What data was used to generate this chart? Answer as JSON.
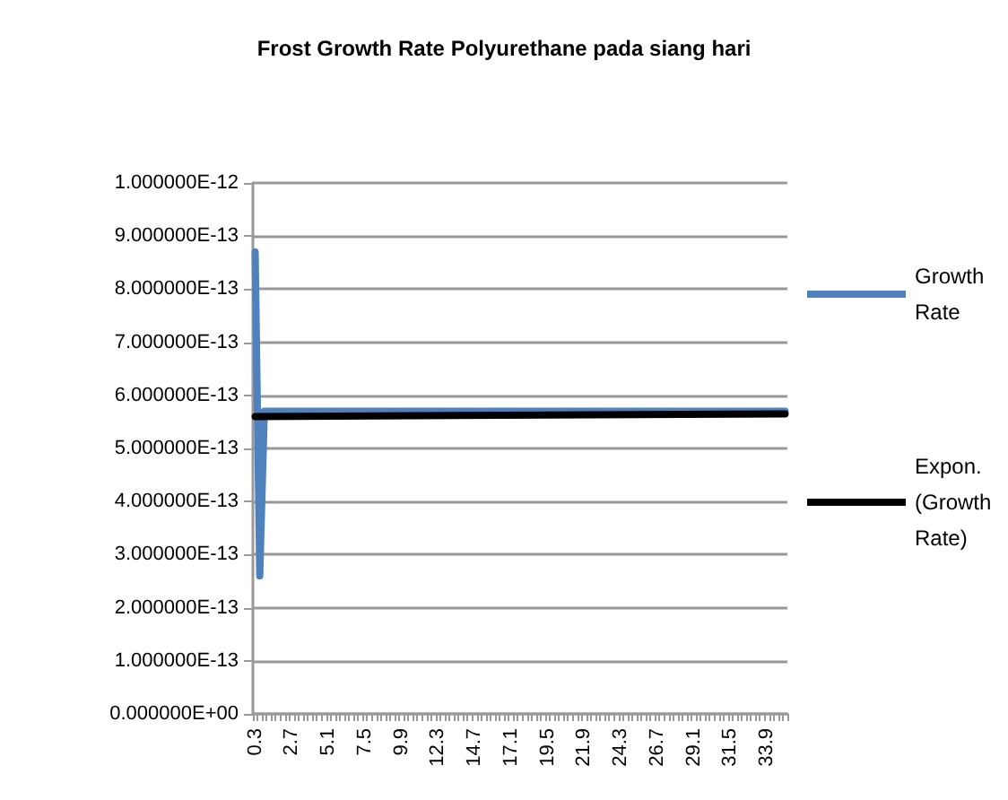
{
  "chart_data": {
    "type": "line",
    "title": "Frost Growth Rate Polyurethane pada siang hari",
    "categories": [
      "0.3",
      null,
      null,
      null,
      null,
      null,
      null,
      null,
      "2.7",
      null,
      null,
      null,
      null,
      null,
      null,
      null,
      "5.1",
      null,
      null,
      null,
      null,
      null,
      null,
      null,
      "7.5",
      null,
      null,
      null,
      null,
      null,
      null,
      null,
      "9.9",
      null,
      null,
      null,
      null,
      null,
      null,
      null,
      "12.3",
      null,
      null,
      null,
      null,
      null,
      null,
      null,
      "14.7",
      null,
      null,
      null,
      null,
      null,
      null,
      null,
      "17.1",
      null,
      null,
      null,
      null,
      null,
      null,
      null,
      "19.5",
      null,
      null,
      null,
      null,
      null,
      null,
      null,
      "21.9",
      null,
      null,
      null,
      null,
      null,
      null,
      null,
      "24.3",
      null,
      null,
      null,
      null,
      null,
      null,
      null,
      "26.7",
      null,
      null,
      null,
      null,
      null,
      null,
      null,
      "29.1",
      null,
      null,
      null,
      null,
      null,
      null,
      null,
      "31.5",
      null,
      null,
      null,
      null,
      null,
      null,
      null,
      "33.9",
      null,
      null,
      null,
      null
    ],
    "series": [
      {
        "name": "Growth Rate",
        "color": "#4f81bd",
        "values": [
          8.7e-13,
          2.6e-13,
          5.7e-13,
          5.7e-13,
          5.7e-13,
          5.7e-13,
          5.7e-13,
          5.7e-13,
          5.7e-13,
          5.7e-13,
          5.7e-13,
          5.7e-13,
          5.7e-13,
          5.7e-13,
          5.7e-13,
          5.7e-13,
          5.7e-13,
          5.7e-13,
          5.7e-13,
          5.7e-13,
          5.7e-13,
          5.7e-13,
          5.7e-13,
          5.7e-13,
          5.7e-13,
          5.7e-13,
          5.7e-13,
          5.7e-13,
          5.7e-13,
          5.7e-13,
          5.7e-13,
          5.7e-13,
          5.7e-13,
          5.7e-13,
          5.7e-13,
          5.7e-13,
          5.7e-13,
          5.7e-13,
          5.7e-13,
          5.7e-13,
          5.7e-13,
          5.7e-13,
          5.7e-13,
          5.7e-13,
          5.7e-13,
          5.7e-13,
          5.7e-13,
          5.7e-13,
          5.7e-13,
          5.7e-13,
          5.7e-13,
          5.7e-13,
          5.7e-13,
          5.7e-13,
          5.7e-13,
          5.7e-13,
          5.7e-13,
          5.7e-13,
          5.7e-13,
          5.7e-13,
          5.7e-13,
          5.7e-13,
          5.7e-13,
          5.7e-13,
          5.7e-13,
          5.7e-13,
          5.7e-13,
          5.7e-13,
          5.7e-13,
          5.7e-13,
          5.7e-13,
          5.7e-13,
          5.7e-13,
          5.7e-13,
          5.7e-13,
          5.7e-13,
          5.7e-13,
          5.7e-13,
          5.7e-13,
          5.7e-13,
          5.7e-13,
          5.7e-13,
          5.7e-13,
          5.7e-13,
          5.7e-13,
          5.7e-13,
          5.7e-13,
          5.7e-13,
          5.7e-13,
          5.7e-13,
          5.7e-13,
          5.7e-13,
          5.7e-13,
          5.7e-13,
          5.7e-13,
          5.7e-13,
          5.7e-13,
          5.7e-13,
          5.7e-13,
          5.7e-13,
          5.7e-13,
          5.7e-13,
          5.7e-13,
          5.7e-13,
          5.7e-13,
          5.7e-13,
          5.7e-13,
          5.7e-13,
          5.7e-13,
          5.7e-13,
          5.7e-13,
          5.7e-13,
          5.7e-13,
          5.7e-13,
          5.7e-13,
          5.7e-13,
          5.7e-13
        ]
      },
      {
        "name": "Expon. (Growth Rate)",
        "color": "#000000",
        "values": [
          5.6e-13,
          null,
          null,
          null,
          null,
          null,
          null,
          null,
          null,
          null,
          null,
          null,
          null,
          null,
          null,
          null,
          null,
          null,
          null,
          null,
          null,
          null,
          null,
          null,
          null,
          null,
          null,
          null,
          null,
          null,
          null,
          null,
          null,
          null,
          null,
          null,
          null,
          null,
          null,
          null,
          null,
          null,
          null,
          null,
          null,
          null,
          null,
          null,
          null,
          null,
          null,
          null,
          null,
          null,
          null,
          null,
          null,
          null,
          null,
          null,
          null,
          null,
          null,
          null,
          null,
          null,
          null,
          null,
          null,
          null,
          null,
          null,
          null,
          null,
          null,
          null,
          null,
          null,
          null,
          null,
          null,
          null,
          null,
          null,
          null,
          null,
          null,
          null,
          null,
          null,
          null,
          null,
          null,
          null,
          null,
          null,
          null,
          null,
          null,
          null,
          null,
          null,
          null,
          null,
          null,
          null,
          null,
          null,
          null,
          null,
          null,
          null,
          null,
          null,
          null,
          null,
          5.65e-13
        ]
      }
    ],
    "ylim": [
      0,
      1e-12
    ],
    "yticks": [
      {
        "value": 0,
        "label": "0.000000E+00"
      },
      {
        "value": 1e-13,
        "label": "1.000000E-13"
      },
      {
        "value": 2e-13,
        "label": "2.000000E-13"
      },
      {
        "value": 3e-13,
        "label": "3.000000E-13"
      },
      {
        "value": 4e-13,
        "label": "4.000000E-13"
      },
      {
        "value": 5e-13,
        "label": "5.000000E-13"
      },
      {
        "value": 6e-13,
        "label": "6.000000E-13"
      },
      {
        "value": 7e-13,
        "label": "7.000000E-13"
      },
      {
        "value": 8e-13,
        "label": "8.000000E-13"
      },
      {
        "value": 9e-13,
        "label": "9.000000E-13"
      },
      {
        "value": 1e-12,
        "label": "1.000000E-12"
      }
    ],
    "grid": "y",
    "legend": "right",
    "marker": "none",
    "line_style": "solid"
  }
}
